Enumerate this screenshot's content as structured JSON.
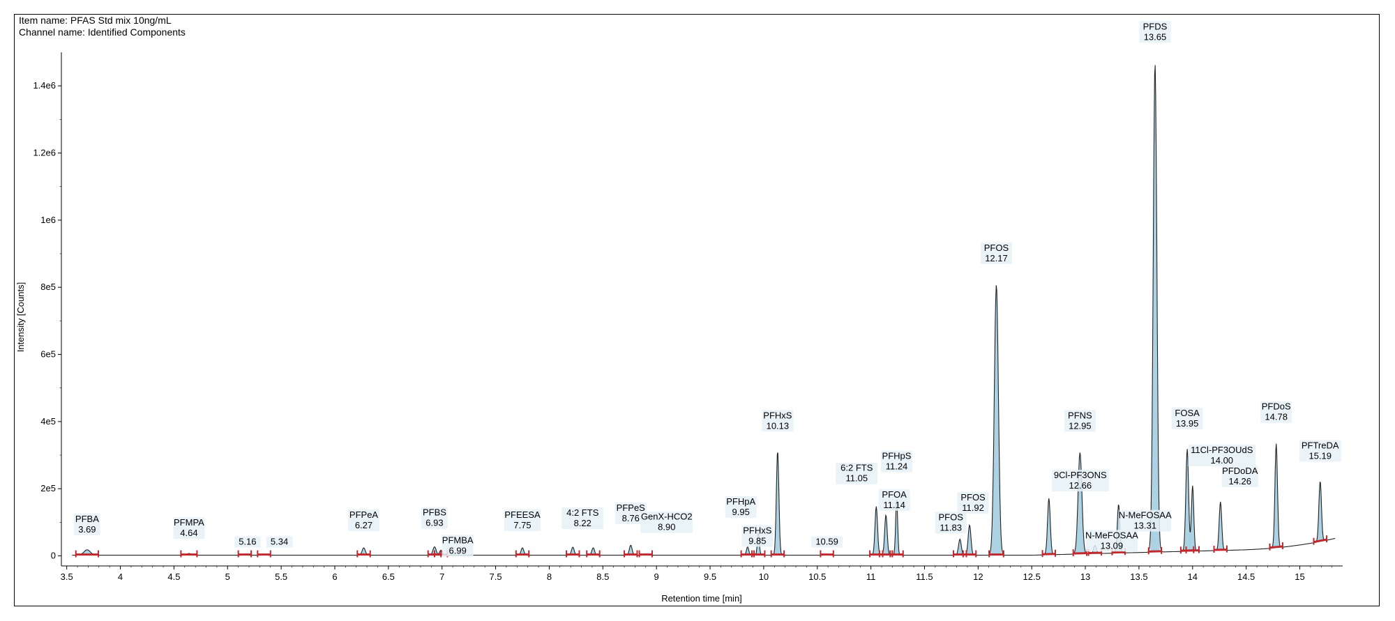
{
  "header": {
    "item_name": "Item name: PFAS Std mix 10ng/mL",
    "channel_name": "Channel name: Identified Components"
  },
  "colors": {
    "peak_fill": "#a8d0e2",
    "peak_stroke": "#222222",
    "baseline_marker": "#c0282d",
    "label_bg": "#e6f1f7"
  },
  "chart_data": {
    "type": "line",
    "xlabel": "Retention time [min]",
    "ylabel": "Intensity [Counts]",
    "xlim": [
      3.45,
      15.4
    ],
    "ylim": [
      -30000,
      1500000
    ],
    "xticks": [
      3.5,
      4,
      4.5,
      5,
      5.5,
      6,
      6.5,
      7,
      7.5,
      8,
      8.5,
      9,
      9.5,
      10,
      10.5,
      11,
      11.5,
      12,
      12.5,
      13,
      13.5,
      14,
      14.5,
      15
    ],
    "xtick_labels": [
      "3.5",
      "4",
      "4.5",
      "5",
      "5.5",
      "6",
      "6.5",
      "7",
      "7.5",
      "8",
      "8.5",
      "9",
      "9.5",
      "10",
      "10.5",
      "11",
      "11.5",
      "12",
      "12.5",
      "13",
      "13.5",
      "14",
      "14.5",
      "15"
    ],
    "yticks": [
      0,
      200000,
      400000,
      600000,
      800000,
      1000000,
      1200000,
      1400000
    ],
    "ytick_labels": [
      "0",
      "2e5",
      "4e5",
      "6e5",
      "8e5",
      "1e6",
      "1.2e6",
      "1.4e6"
    ],
    "peaks": [
      {
        "rt": 3.69,
        "height": 16000,
        "width": 0.07,
        "name": "PFBA",
        "label": "3.69"
      },
      {
        "rt": 4.64,
        "height": 5000,
        "width": 0.05,
        "name": "PFMPA",
        "label": "4.64"
      },
      {
        "rt": 5.16,
        "height": 2000,
        "width": 0.03,
        "name": "",
        "label": "5.16"
      },
      {
        "rt": 5.34,
        "height": 2000,
        "width": 0.03,
        "name": "",
        "label": "5.34"
      },
      {
        "rt": 6.27,
        "height": 22000,
        "width": 0.035,
        "name": "PFPeA",
        "label": "6.27"
      },
      {
        "rt": 6.93,
        "height": 25000,
        "width": 0.035,
        "name": "PFBS",
        "label": "6.93"
      },
      {
        "rt": 6.99,
        "height": 15000,
        "width": 0.03,
        "name": "PFMBA",
        "label": "6.99"
      },
      {
        "rt": 7.75,
        "height": 22000,
        "width": 0.03,
        "name": "PFEESA",
        "label": "7.75"
      },
      {
        "rt": 8.22,
        "height": 24000,
        "width": 0.03,
        "name": "4:2 FTS",
        "label": "8.22"
      },
      {
        "rt": 8.41,
        "height": 22000,
        "width": 0.03,
        "name": "",
        "label": ""
      },
      {
        "rt": 8.76,
        "height": 30000,
        "width": 0.03,
        "name": "PFPeS",
        "label": "8.76"
      },
      {
        "rt": 8.9,
        "height": 4000,
        "width": 0.03,
        "name": "GenX-HCO2",
        "label": "8.90"
      },
      {
        "rt": 9.85,
        "height": 25000,
        "width": 0.025,
        "name": "PFHxS",
        "label": "9.85"
      },
      {
        "rt": 9.95,
        "height": 68000,
        "width": 0.022,
        "name": "PFHpA",
        "label": "9.95"
      },
      {
        "rt": 10.13,
        "height": 310000,
        "width": 0.028,
        "name": "PFHxS",
        "label": "10.13"
      },
      {
        "rt": 10.59,
        "height": 2000,
        "width": 0.03,
        "name": "",
        "label": "10.59"
      },
      {
        "rt": 11.05,
        "height": 145000,
        "width": 0.028,
        "name": "6:2 FTS",
        "label": "11.05"
      },
      {
        "rt": 11.14,
        "height": 120000,
        "width": 0.028,
        "name": "PFOA",
        "label": "11.14"
      },
      {
        "rt": 11.24,
        "height": 168000,
        "width": 0.022,
        "name": "PFHpS",
        "label": "11.24"
      },
      {
        "rt": 11.83,
        "height": 48000,
        "width": 0.03,
        "name": "PFOS",
        "label": "11.83"
      },
      {
        "rt": 11.92,
        "height": 90000,
        "width": 0.03,
        "name": "PFOS",
        "label": "11.92"
      },
      {
        "rt": 12.17,
        "height": 805000,
        "width": 0.045,
        "name": "PFOS",
        "label": "12.17"
      },
      {
        "rt": 12.66,
        "height": 168000,
        "width": 0.03,
        "name": "9Cl-PF3ONS",
        "label": "12.66"
      },
      {
        "rt": 12.95,
        "height": 302000,
        "width": 0.042,
        "name": "PFNS",
        "label": "12.95"
      },
      {
        "rt": 13.09,
        "height": 25000,
        "width": 0.03,
        "name": "N-MeFOSAA",
        "label": "13.09"
      },
      {
        "rt": 13.31,
        "height": 145000,
        "width": 0.028,
        "name": "N-MeFOSAA",
        "label": "13.31"
      },
      {
        "rt": 13.65,
        "height": 1455000,
        "width": 0.04,
        "name": "PFDS",
        "label": "13.65"
      },
      {
        "rt": 13.95,
        "height": 305000,
        "width": 0.03,
        "name": "FOSA",
        "label": "13.95"
      },
      {
        "rt": 14.0,
        "height": 195000,
        "width": 0.026,
        "name": "11Cl-PF3OUdS",
        "label": "14.00"
      },
      {
        "rt": 14.26,
        "height": 145000,
        "width": 0.028,
        "name": "PFDoDA",
        "label": "14.26"
      },
      {
        "rt": 14.78,
        "height": 310000,
        "width": 0.028,
        "name": "PFDoS",
        "label": "14.78"
      },
      {
        "rt": 15.19,
        "height": 180000,
        "width": 0.028,
        "name": "PFTreDA",
        "label": "15.19"
      }
    ]
  }
}
